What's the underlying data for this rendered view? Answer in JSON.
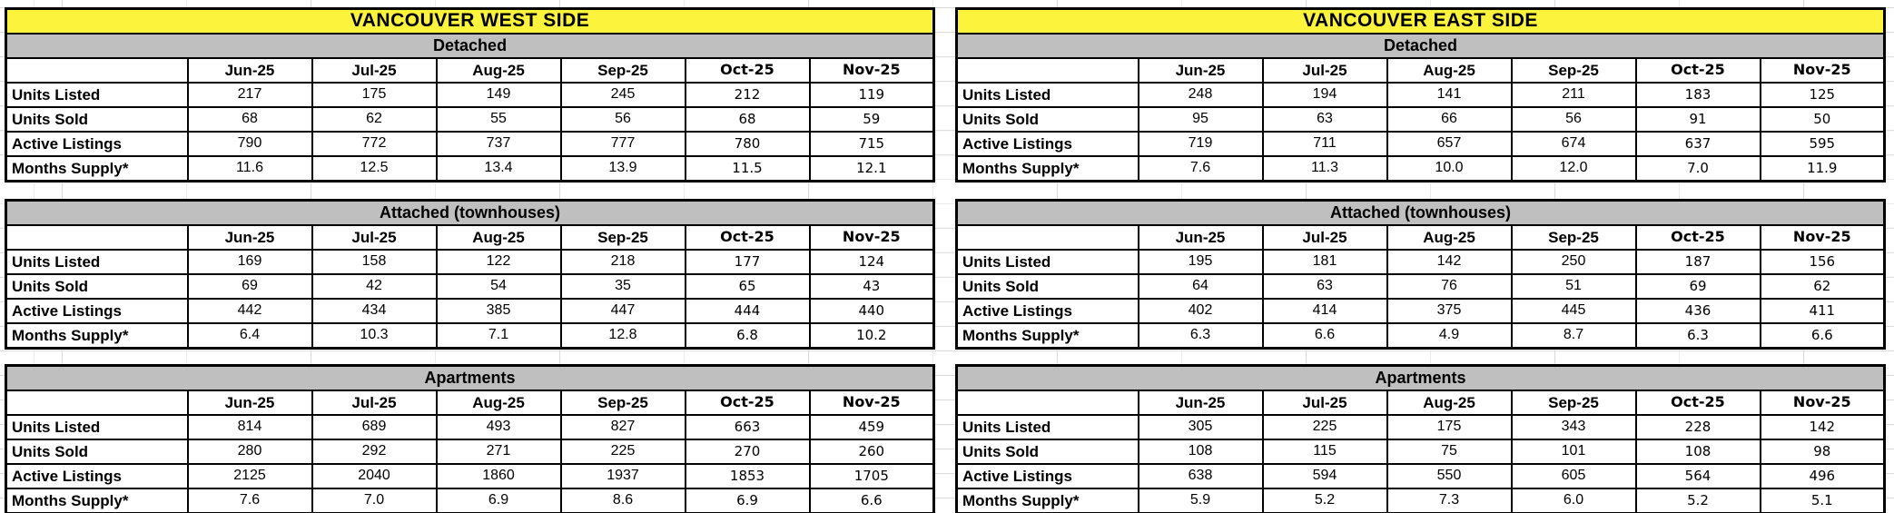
{
  "columns": [
    "Jun-25",
    "Jul-25",
    "Aug-25",
    "Sep-25",
    "Oct-25",
    "Nov-25"
  ],
  "metrics": [
    "Units Listed",
    "Units Sold",
    "Active Listings",
    "Months Supply*"
  ],
  "colors": {
    "title_bg": "#FBF33C",
    "section_header_bg": "#BFBFBF",
    "border": "#000000",
    "gridline": "#D9D9D9",
    "text": "#000000"
  },
  "sides": [
    {
      "title": "VANCOUVER WEST SIDE",
      "sections": [
        {
          "label": "Detached",
          "rows": [
            {
              "label": "Units Listed",
              "values": [
                "217",
                "175",
                "149",
                "245",
                "212",
                "119"
              ]
            },
            {
              "label": "Units Sold",
              "values": [
                "68",
                "62",
                "55",
                "56",
                "68",
                "59"
              ]
            },
            {
              "label": "Active Listings",
              "values": [
                "790",
                "772",
                "737",
                "777",
                "780",
                "715"
              ]
            },
            {
              "label": "Months Supply*",
              "values": [
                "11.6",
                "12.5",
                "13.4",
                "13.9",
                "11.5",
                "12.1"
              ]
            }
          ]
        },
        {
          "label": "Attached (townhouses)",
          "rows": [
            {
              "label": "Units Listed",
              "values": [
                "169",
                "158",
                "122",
                "218",
                "177",
                "124"
              ]
            },
            {
              "label": "Units Sold",
              "values": [
                "69",
                "42",
                "54",
                "35",
                "65",
                "43"
              ]
            },
            {
              "label": "Active Listings",
              "values": [
                "442",
                "434",
                "385",
                "447",
                "444",
                "440"
              ]
            },
            {
              "label": "Months Supply*",
              "values": [
                "6.4",
                "10.3",
                "7.1",
                "12.8",
                "6.8",
                "10.2"
              ]
            }
          ]
        },
        {
          "label": "Apartments",
          "rows": [
            {
              "label": "Units Listed",
              "values": [
                "814",
                "689",
                "493",
                "827",
                "663",
                "459"
              ]
            },
            {
              "label": "Units Sold",
              "values": [
                "280",
                "292",
                "271",
                "225",
                "270",
                "260"
              ]
            },
            {
              "label": "Active Listings",
              "values": [
                "2125",
                "2040",
                "1860",
                "1937",
                "1853",
                "1705"
              ]
            },
            {
              "label": "Months Supply*",
              "values": [
                "7.6",
                "7.0",
                "6.9",
                "8.6",
                "6.9",
                "6.6"
              ]
            }
          ]
        }
      ]
    },
    {
      "title": "VANCOUVER EAST SIDE",
      "sections": [
        {
          "label": "Detached",
          "rows": [
            {
              "label": "Units Listed",
              "values": [
                "248",
                "194",
                "141",
                "211",
                "183",
                "125"
              ]
            },
            {
              "label": "Units Sold",
              "values": [
                "95",
                "63",
                "66",
                "56",
                "91",
                "50"
              ]
            },
            {
              "label": "Active Listings",
              "values": [
                "719",
                "711",
                "657",
                "674",
                "637",
                "595"
              ]
            },
            {
              "label": "Months Supply*",
              "values": [
                "7.6",
                "11.3",
                "10.0",
                "12.0",
                "7.0",
                "11.9"
              ]
            }
          ]
        },
        {
          "label": "Attached (townhouses)",
          "rows": [
            {
              "label": "Units Listed",
              "values": [
                "195",
                "181",
                "142",
                "250",
                "187",
                "156"
              ]
            },
            {
              "label": "Units Sold",
              "values": [
                "64",
                "63",
                "76",
                "51",
                "69",
                "62"
              ]
            },
            {
              "label": "Active Listings",
              "values": [
                "402",
                "414",
                "375",
                "445",
                "436",
                "411"
              ]
            },
            {
              "label": "Months Supply*",
              "values": [
                "6.3",
                "6.6",
                "4.9",
                "8.7",
                "6.3",
                "6.6"
              ]
            }
          ]
        },
        {
          "label": "Apartments",
          "rows": [
            {
              "label": "Units Listed",
              "values": [
                "305",
                "225",
                "175",
                "343",
                "228",
                "142"
              ]
            },
            {
              "label": "Units Sold",
              "values": [
                "108",
                "115",
                "75",
                "101",
                "108",
                "98"
              ]
            },
            {
              "label": "Active Listings",
              "values": [
                "638",
                "594",
                "550",
                "605",
                "564",
                "496"
              ]
            },
            {
              "label": "Months Supply*",
              "values": [
                "5.9",
                "5.2",
                "7.3",
                "6.0",
                "5.2",
                "5.1"
              ]
            }
          ]
        }
      ]
    }
  ]
}
